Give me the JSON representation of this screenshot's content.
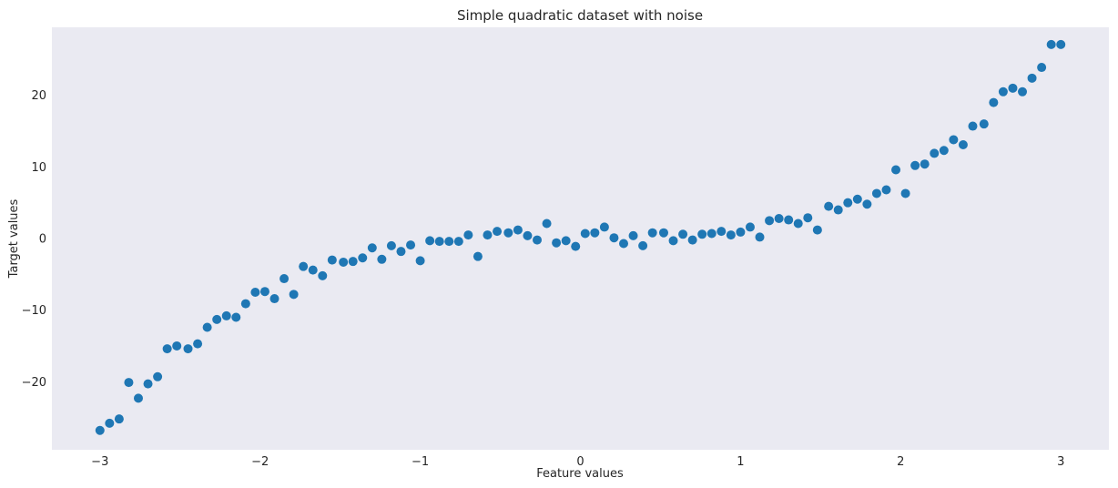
{
  "chart_data": {
    "type": "scatter",
    "title": "Simple quadratic dataset with noise",
    "xlabel": "Feature values",
    "ylabel": "Target values",
    "xlim": [
      -3.3,
      3.3
    ],
    "ylim": [
      -29.5,
      29.5
    ],
    "xticks": [
      -3,
      -2,
      -1,
      0,
      1,
      2,
      3
    ],
    "xtick_labels": [
      "−3",
      "−2",
      "−1",
      "0",
      "1",
      "2",
      "3"
    ],
    "yticks": [
      -20,
      -10,
      0,
      10,
      20
    ],
    "ytick_labels": [
      "−20",
      "−10",
      "0",
      "10",
      "20"
    ],
    "grid": false,
    "marker_color": "#1f77b4",
    "plot_background": "#eaeaf2",
    "series": [
      {
        "x": [
          -3.0,
          -2.94,
          -2.88,
          -2.82,
          -2.76,
          -2.7,
          -2.64,
          -2.58,
          -2.52,
          -2.45,
          -2.39,
          -2.33,
          -2.27,
          -2.21,
          -2.15,
          -2.09,
          -2.03,
          -1.97,
          -1.91,
          -1.85,
          -1.79,
          -1.73,
          -1.67,
          -1.61,
          -1.55,
          -1.48,
          -1.42,
          -1.36,
          -1.3,
          -1.24,
          -1.18,
          -1.12,
          -1.06,
          -1.0,
          -0.94,
          -0.88,
          -0.82,
          -0.76,
          -0.7,
          -0.64,
          -0.58,
          -0.52,
          -0.45,
          -0.39,
          -0.33,
          -0.27,
          -0.21,
          -0.15,
          -0.09,
          -0.03,
          0.03,
          0.09,
          0.15,
          0.21,
          0.27,
          0.33,
          0.39,
          0.45,
          0.52,
          0.58,
          0.64,
          0.7,
          0.76,
          0.82,
          0.88,
          0.94,
          1.0,
          1.06,
          1.12,
          1.18,
          1.24,
          1.3,
          1.36,
          1.42,
          1.48,
          1.55,
          1.61,
          1.67,
          1.73,
          1.79,
          1.85,
          1.91,
          1.97,
          2.03,
          2.09,
          2.15,
          2.21,
          2.27,
          2.33,
          2.39,
          2.45,
          2.52,
          2.58,
          2.64,
          2.7,
          2.76,
          2.82,
          2.88,
          2.94,
          3.0
        ],
        "y": [
          -26.8,
          -25.8,
          -25.2,
          -20.1,
          -22.3,
          -20.3,
          -19.3,
          -15.4,
          -15.0,
          -15.4,
          -14.7,
          -12.4,
          -11.3,
          -10.8,
          -11.0,
          -9.1,
          -7.5,
          -7.4,
          -8.4,
          -5.6,
          -7.8,
          -3.9,
          -4.4,
          -5.2,
          -3.0,
          -3.3,
          -3.2,
          -2.7,
          -1.3,
          -2.9,
          -1.0,
          -1.8,
          -0.9,
          -3.1,
          -0.3,
          -0.4,
          -0.4,
          -0.4,
          0.5,
          -2.5,
          0.5,
          1.0,
          0.8,
          1.2,
          0.4,
          -0.2,
          2.1,
          -0.6,
          -0.3,
          -1.1,
          0.7,
          0.8,
          1.6,
          0.1,
          -0.7,
          0.4,
          -1.0,
          0.8,
          0.8,
          -0.3,
          0.6,
          -0.2,
          0.6,
          0.7,
          1.0,
          0.5,
          0.9,
          1.6,
          0.2,
          2.5,
          2.8,
          2.6,
          2.1,
          2.9,
          1.2,
          4.5,
          4.0,
          5.0,
          5.5,
          4.8,
          6.3,
          6.8,
          9.6,
          6.3,
          10.2,
          10.4,
          11.9,
          12.3,
          13.8,
          13.1,
          15.7,
          16.0,
          19.0,
          20.5,
          21.0,
          20.5,
          22.4,
          23.9,
          27.1,
          27.1
        ]
      }
    ]
  }
}
